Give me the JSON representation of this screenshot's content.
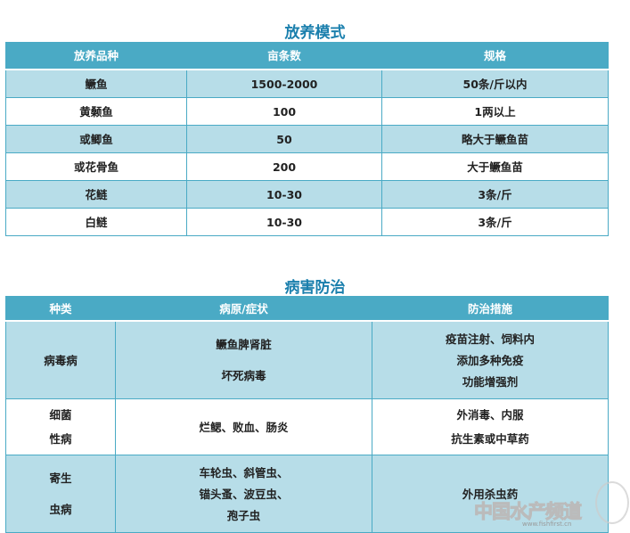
{
  "stocking": {
    "title": "放养模式",
    "headers": [
      "放养品种",
      "亩条数",
      "规格"
    ],
    "rows": [
      [
        "鳜鱼",
        "1500-2000",
        "50条/斤以内"
      ],
      [
        "黄颡鱼",
        "100",
        "1两以上"
      ],
      [
        "或鲫鱼",
        "50",
        "略大于鳜鱼苗"
      ],
      [
        "或花骨鱼",
        "200",
        "大于鳜鱼苗"
      ],
      [
        "花鲢",
        "10-30",
        "3条/斤"
      ],
      [
        "白鲢",
        "10-30",
        "3条/斤"
      ]
    ]
  },
  "disease": {
    "title": "病害防治",
    "headers": [
      "种类",
      "病原/症状",
      "防治措施"
    ],
    "rows": [
      {
        "type": [
          "病毒病"
        ],
        "cause": [
          "鳜鱼脾肾脏",
          "坏死病毒"
        ],
        "measure": [
          "疫苗注射、饲料内",
          "添加多种免疫",
          "功能增强剂"
        ]
      },
      {
        "type": [
          "细菌",
          "性病"
        ],
        "cause": [
          "烂鳃、败血、肠炎"
        ],
        "measure": [
          "外消毒、内服",
          "抗生素或中草药"
        ]
      },
      {
        "type": [
          "寄生",
          "虫病"
        ],
        "cause": [
          "车轮虫、斜管虫、",
          "锚头蚤、波豆虫、",
          "孢子虫"
        ],
        "measure": [
          "外用杀虫药"
        ]
      }
    ]
  },
  "watermark": {
    "text": "中国水产频道",
    "url": "www.fishfirst.cn"
  },
  "colors": {
    "header": "#4aaac5",
    "alt_row": "#b7dde8",
    "title": "#1a7fad"
  }
}
